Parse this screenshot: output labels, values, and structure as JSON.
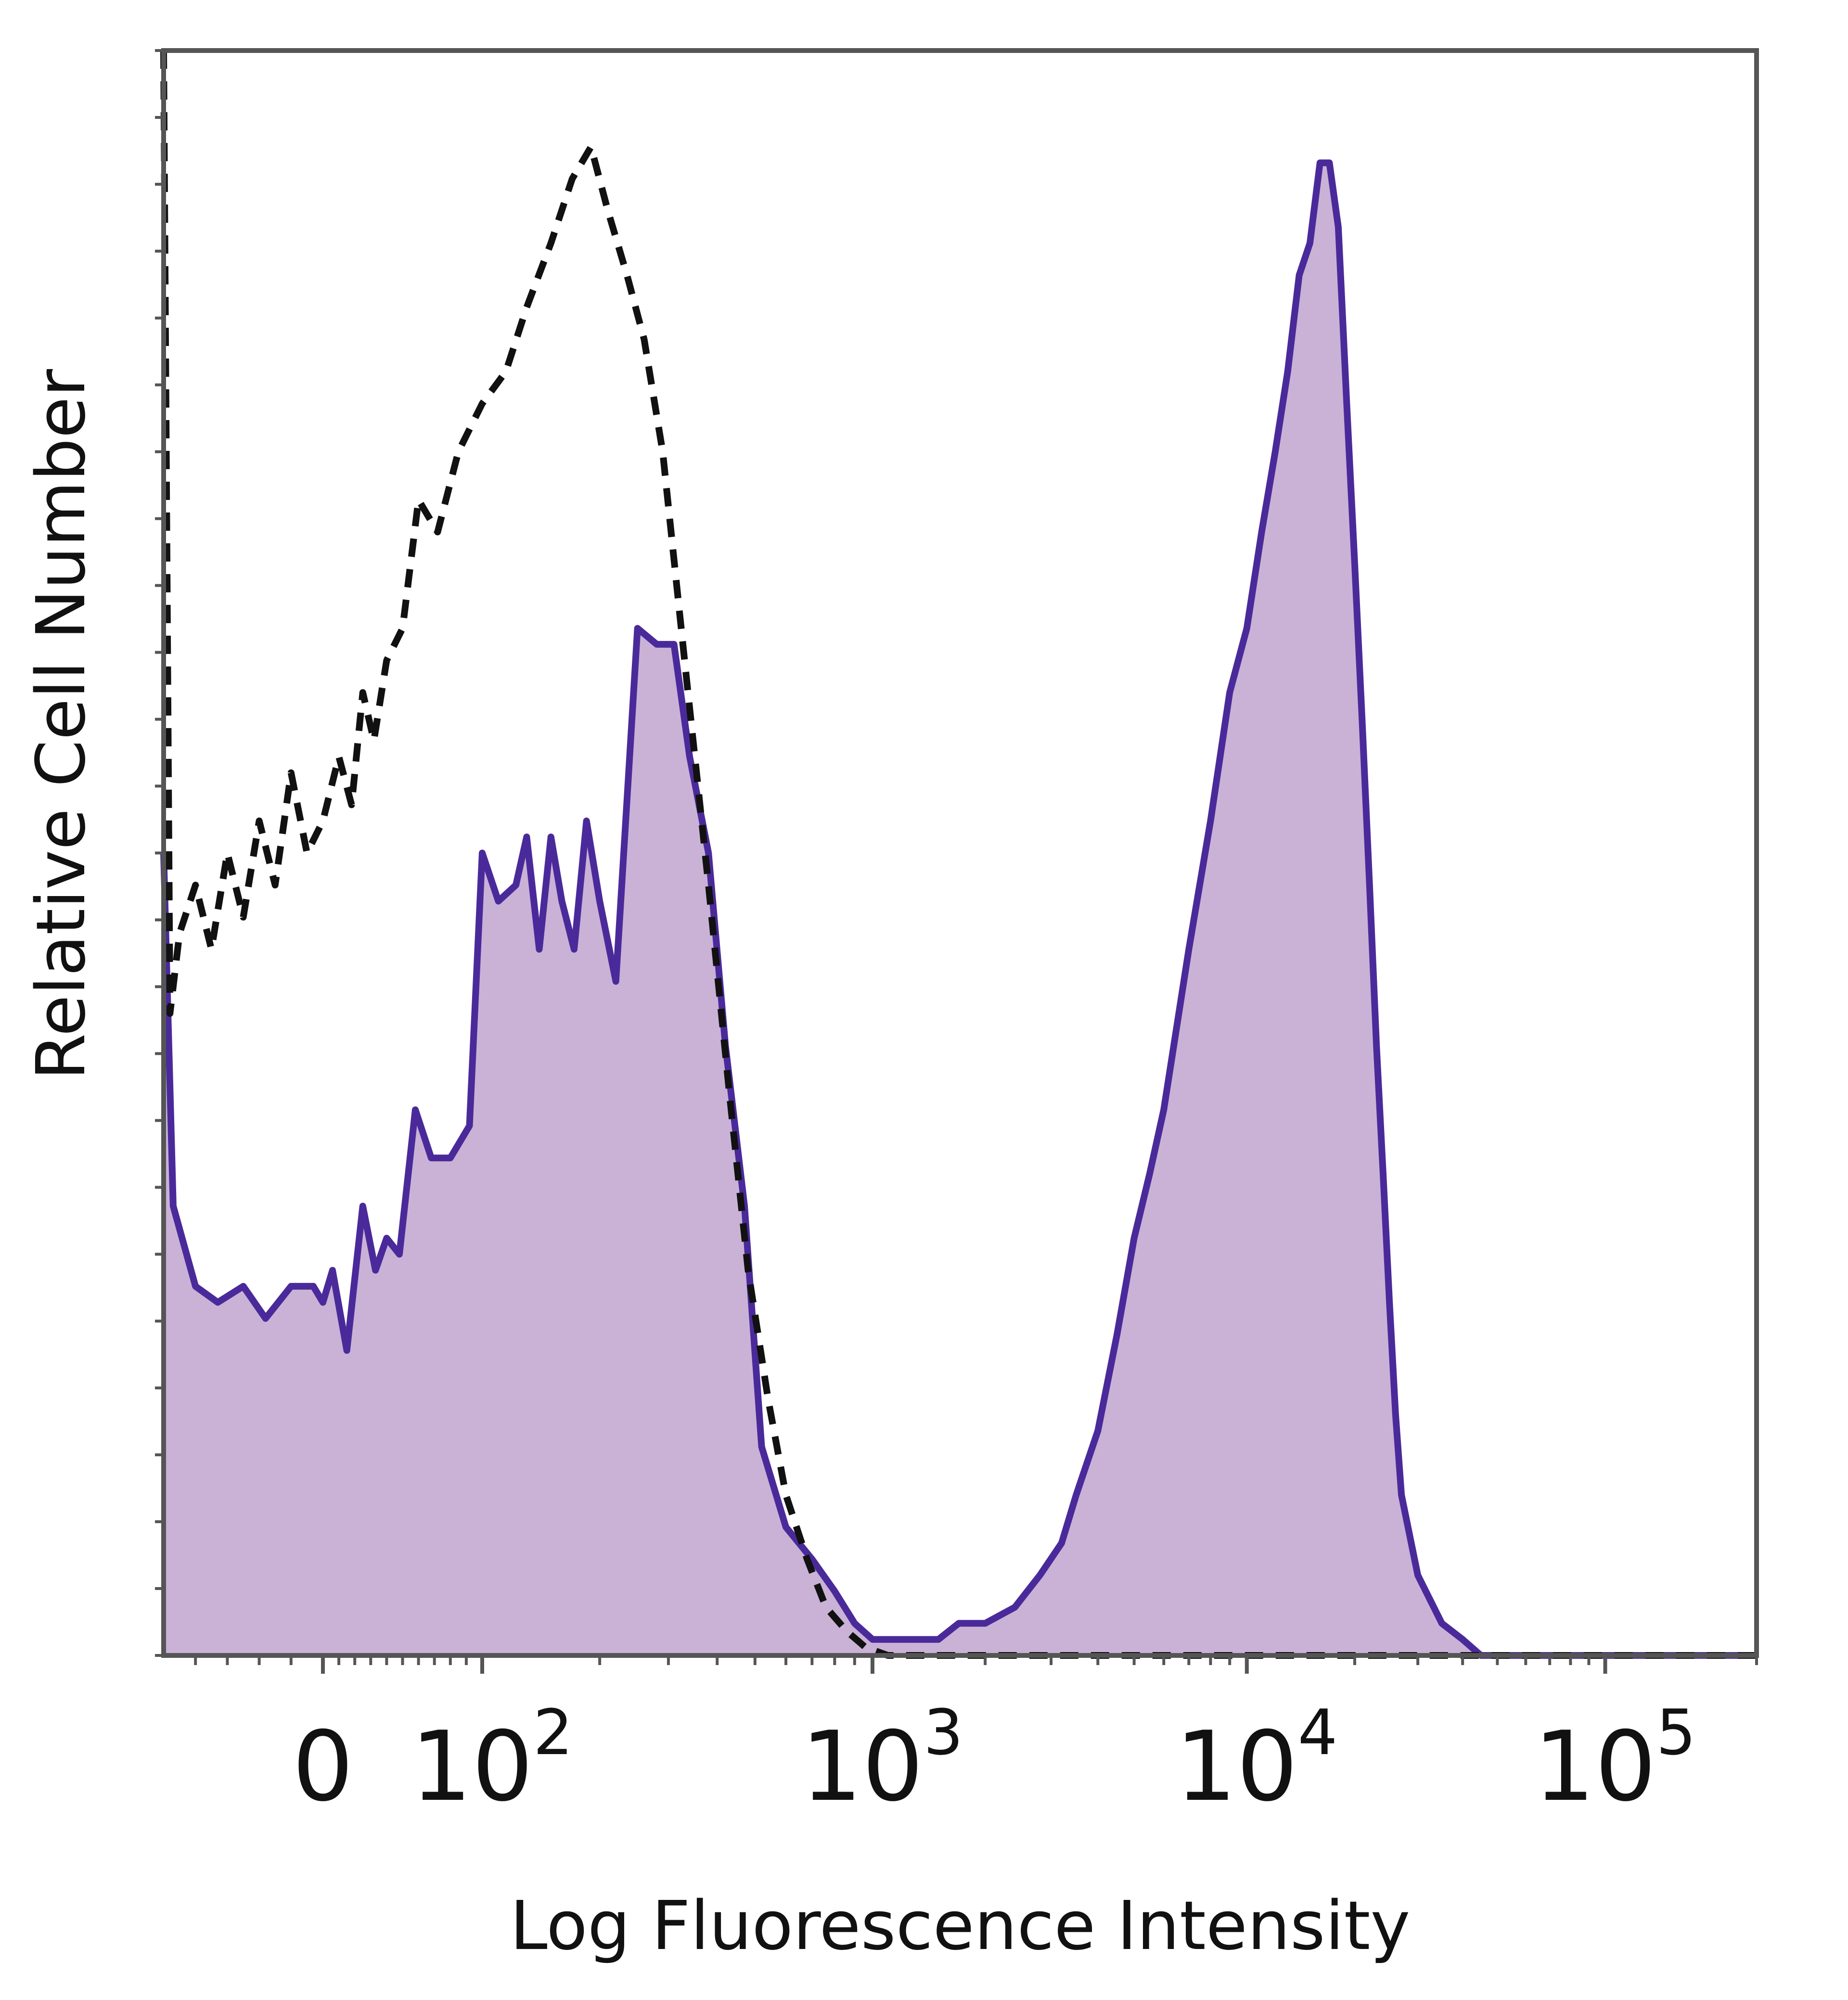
{
  "chart_data": {
    "type": "area",
    "xlabel": "Log Fluorescence Intensity",
    "ylabel": "Relative Cell Number",
    "x_scale": "biexponential",
    "xlim": [
      -50,
      200000
    ],
    "ylim": [
      0,
      100
    ],
    "grid": false,
    "legend": "none",
    "x_ticks": [
      {
        "value": 0,
        "base": "0",
        "exp": ""
      },
      {
        "value": 100,
        "base": "10",
        "exp": "2"
      },
      {
        "value": 1000,
        "base": "10",
        "exp": "3"
      },
      {
        "value": 10000,
        "base": "10",
        "exp": "4"
      },
      {
        "value": 100000,
        "base": "10",
        "exp": "5"
      }
    ],
    "colors": {
      "fill": "#c9b2d6",
      "line": "#4a2a9a",
      "dashed": "#111111",
      "frame": "#555555"
    },
    "series": [
      {
        "style": "filled-solid",
        "x": [
          -50,
          -47,
          -40,
          -33,
          -25,
          -18,
          -10,
          -3,
          0,
          6,
          15,
          25,
          33,
          40,
          48,
          58,
          68,
          80,
          92,
          100,
          110,
          122,
          130,
          140,
          150,
          160,
          172,
          185,
          200,
          220,
          250,
          280,
          310,
          340,
          380,
          420,
          470,
          520,
          600,
          700,
          800,
          900,
          1000,
          1100,
          1300,
          1500,
          1700,
          2000,
          2400,
          2800,
          3200,
          3500,
          4000,
          4500,
          5000,
          5500,
          6000,
          7000,
          8000,
          9000,
          10000,
          11000,
          12000,
          13000,
          14000,
          15000,
          16000,
          17000,
          18000,
          19000,
          20000,
          21000,
          22000,
          23000,
          24000,
          25000,
          26000,
          27000,
          30000,
          35000,
          40000,
          45000,
          50000,
          60000,
          70000,
          80000,
          90000,
          100000,
          200000
        ],
        "y": [
          50,
          28,
          23,
          22,
          23,
          21,
          23,
          23,
          22,
          24,
          19,
          28,
          24,
          26,
          25,
          34,
          31,
          31,
          33,
          50,
          47,
          48,
          51,
          44,
          51,
          47,
          44,
          52,
          47,
          42,
          64,
          63,
          63,
          56,
          50,
          38,
          28,
          13,
          8,
          6,
          4,
          2,
          1,
          1,
          1,
          1,
          2,
          2,
          3,
          5,
          7,
          10,
          14,
          20,
          26,
          30,
          34,
          44,
          52,
          60,
          64,
          70,
          75,
          80,
          86,
          88,
          93,
          93,
          89,
          78,
          68,
          58,
          48,
          38,
          30,
          22,
          15,
          10,
          5,
          2,
          1,
          0,
          0,
          0,
          0,
          0,
          0,
          0,
          0
        ],
        "x_pre_note": "Values above are interpreted as data units on the biexponential axis."
      }
    ]
  }
}
